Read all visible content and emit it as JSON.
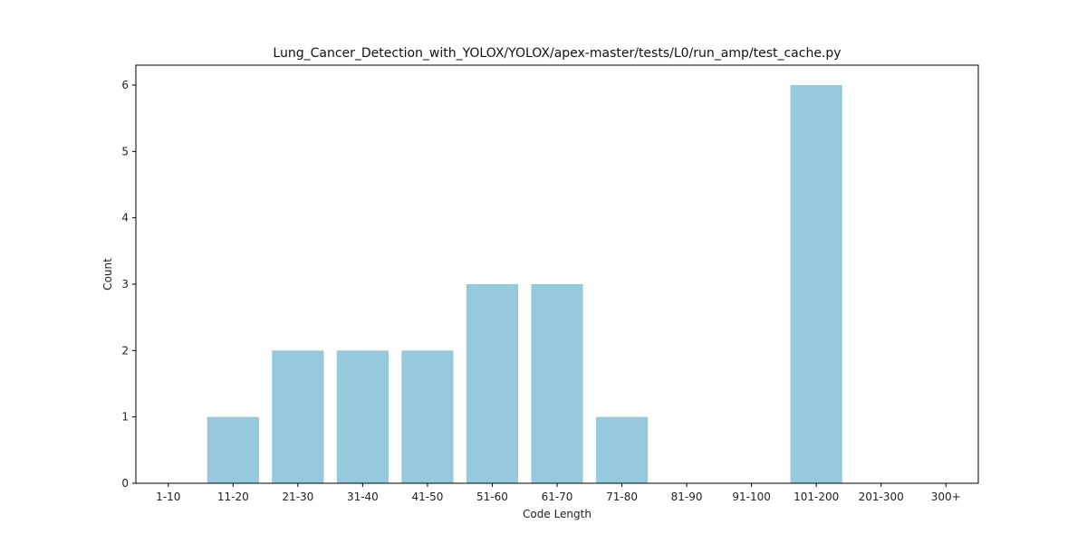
{
  "chart_data": {
    "type": "bar",
    "title": "Lung_Cancer_Detection_with_YOLOX/YOLOX/apex-master/tests/L0/run_amp/test_cache.py",
    "xlabel": "Code Length",
    "ylabel": "Count",
    "categories": [
      "1-10",
      "11-20",
      "21-30",
      "31-40",
      "41-50",
      "51-60",
      "61-70",
      "71-80",
      "81-90",
      "91-100",
      "101-200",
      "201-300",
      "300+"
    ],
    "values": [
      0,
      1,
      2,
      2,
      2,
      3,
      3,
      1,
      0,
      0,
      6,
      0,
      0
    ],
    "ylim": [
      0,
      6.3
    ],
    "yticks": [
      0,
      1,
      2,
      3,
      4,
      5,
      6
    ],
    "grid": false,
    "bar_color": "#96c9dc"
  }
}
